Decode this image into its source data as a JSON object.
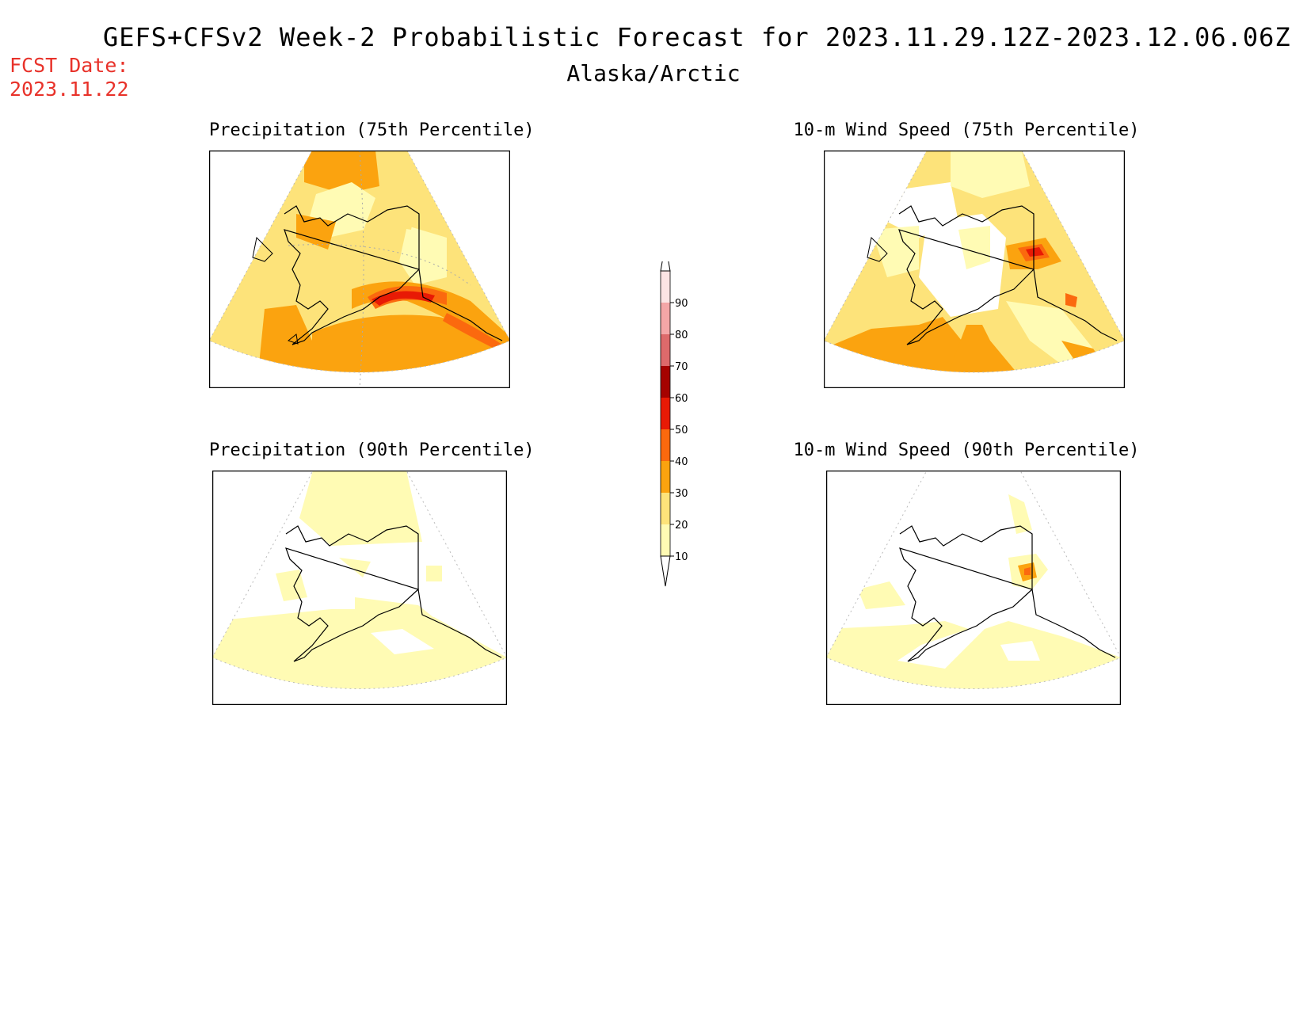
{
  "header": {
    "title": "GEFS+CFSv2 Week-2 Probabilistic Forecast for 2023.11.29.12Z-2023.12.06.06Z",
    "region": "Alaska/Arctic",
    "fcst_label": "FCST Date:",
    "fcst_date": "2023.11.22"
  },
  "panels": [
    {
      "id": "p75",
      "title": "Precipitation (75th Percentile)"
    },
    {
      "id": "w75",
      "title": "10-m Wind Speed (75th Percentile)"
    },
    {
      "id": "p90",
      "title": "Precipitation (90th Percentile)"
    },
    {
      "id": "w90",
      "title": "10-m Wind Speed (90th Percentile)"
    }
  ],
  "colorbar": {
    "levels": [
      "10",
      "20",
      "30",
      "40",
      "50",
      "60",
      "70",
      "80",
      "90"
    ],
    "colors": [
      "#fffbb4",
      "#fde37a",
      "#fba30f",
      "#fb690e",
      "#e81a05",
      "#a50200",
      "#dd6a6b",
      "#f4a6a7",
      "#fce4e4"
    ]
  }
}
